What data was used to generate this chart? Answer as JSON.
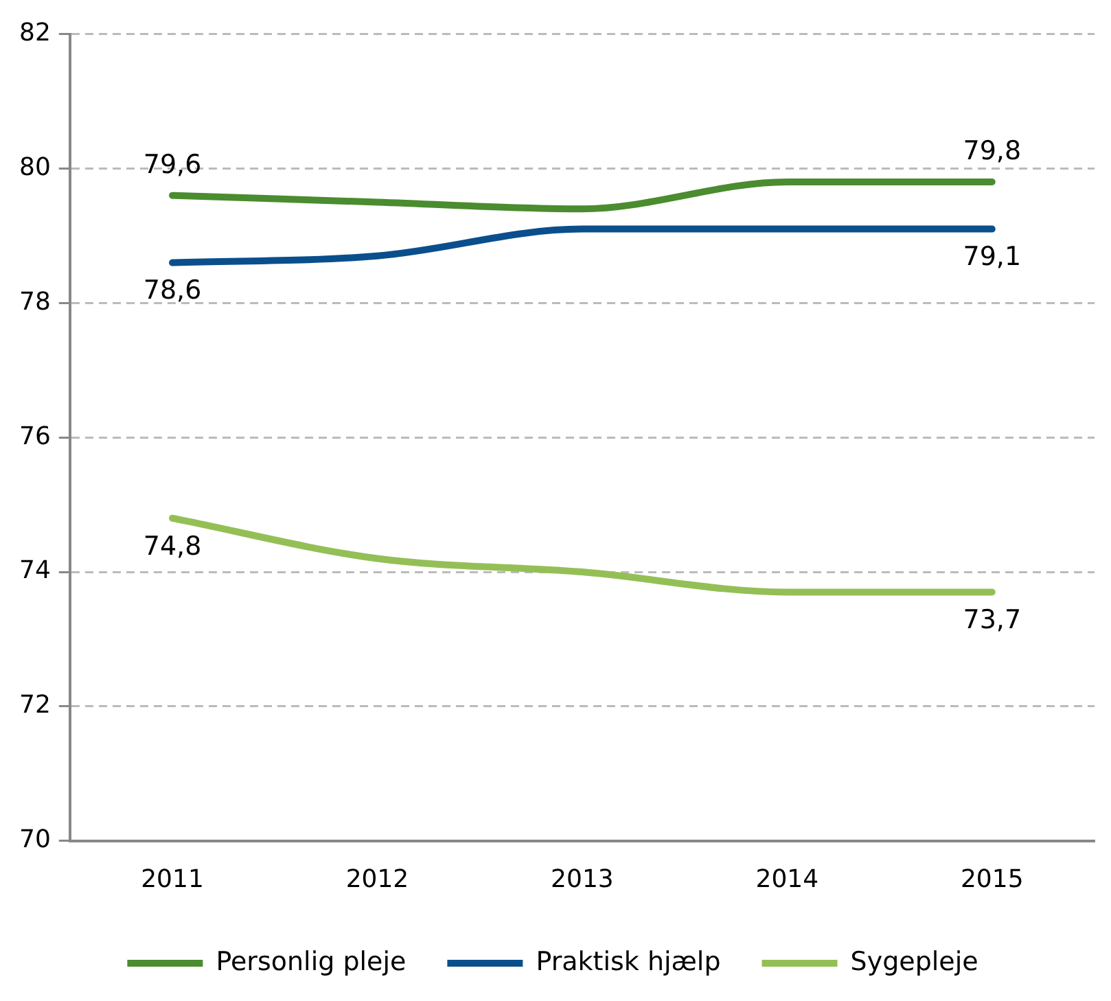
{
  "chart_data": {
    "type": "line",
    "categories": [
      "2011",
      "2012",
      "2013",
      "2014",
      "2015"
    ],
    "series": [
      {
        "name": "Personlig pleje",
        "color": "#4a8c2f",
        "values": [
          79.6,
          79.5,
          79.4,
          79.8,
          79.8
        ],
        "value_labels": [
          "79,6",
          null,
          null,
          null,
          "79,8"
        ]
      },
      {
        "name": "Praktisk hjælp",
        "color": "#0a4f8c",
        "values": [
          78.6,
          78.7,
          79.1,
          79.1,
          79.1
        ],
        "value_labels": [
          "78,6",
          null,
          null,
          null,
          "79,1"
        ]
      },
      {
        "name": "Sygepleje",
        "color": "#94bf56",
        "values": [
          74.8,
          74.2,
          74.0,
          73.7,
          73.7
        ],
        "value_labels": [
          "74,8",
          null,
          null,
          null,
          "73,7"
        ]
      }
    ],
    "ylim": [
      70,
      82
    ],
    "yticks": [
      70,
      72,
      74,
      76,
      78,
      80,
      82
    ],
    "grid": "y",
    "legend": "bottom",
    "marker": "none",
    "line_style": "solid"
  }
}
